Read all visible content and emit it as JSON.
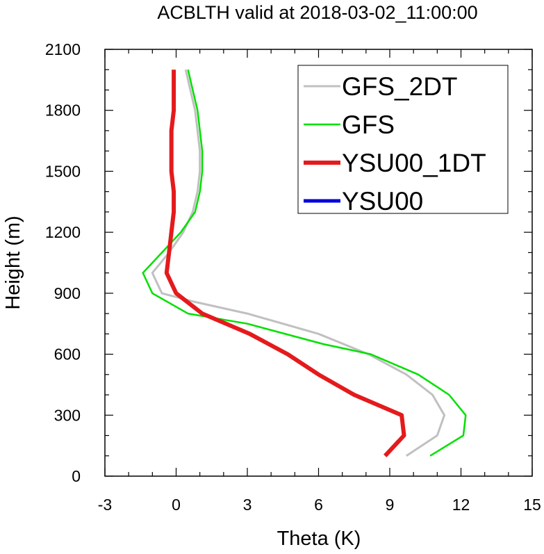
{
  "chart_data": {
    "type": "line",
    "title": "ACBLTH valid at 2018-03-02_11:00:00",
    "xlabel": "Theta (K)",
    "ylabel": "Height (m)",
    "xlim": [
      -3,
      15
    ],
    "ylim": [
      0,
      2100
    ],
    "xticks": [
      "-3",
      "0",
      "3",
      "6",
      "9",
      "12",
      "15"
    ],
    "yticks": [
      "0",
      "300",
      "600",
      "900",
      "1200",
      "1500",
      "1800",
      "2100"
    ],
    "legend_position": "top-right",
    "series": [
      {
        "name": "GFS_2DT",
        "color": "#c0c0c0",
        "points": [
          [
            9.7,
            100
          ],
          [
            11.0,
            200
          ],
          [
            11.3,
            300
          ],
          [
            10.8,
            400
          ],
          [
            9.7,
            500
          ],
          [
            8.1,
            600
          ],
          [
            6.0,
            700
          ],
          [
            3.0,
            800
          ],
          [
            0.7,
            860
          ],
          [
            -0.6,
            900
          ],
          [
            -1.0,
            1000
          ],
          [
            -0.3,
            1100
          ],
          [
            0.3,
            1200
          ],
          [
            0.7,
            1300
          ],
          [
            0.9,
            1400
          ],
          [
            1.0,
            1500
          ],
          [
            1.0,
            1600
          ],
          [
            0.9,
            1700
          ],
          [
            0.8,
            1800
          ],
          [
            0.6,
            1900
          ],
          [
            0.4,
            2000
          ]
        ]
      },
      {
        "name": "GFS",
        "color": "#00e000",
        "points": [
          [
            10.7,
            100
          ],
          [
            12.1,
            200
          ],
          [
            12.2,
            300
          ],
          [
            11.5,
            400
          ],
          [
            10.2,
            500
          ],
          [
            8.2,
            600
          ],
          [
            6.2,
            650
          ],
          [
            3.0,
            750
          ],
          [
            0.5,
            800
          ],
          [
            -1.0,
            900
          ],
          [
            -1.4,
            1000
          ],
          [
            -0.6,
            1100
          ],
          [
            0.2,
            1200
          ],
          [
            0.8,
            1300
          ],
          [
            1.0,
            1400
          ],
          [
            1.1,
            1500
          ],
          [
            1.1,
            1600
          ],
          [
            1.0,
            1700
          ],
          [
            0.9,
            1800
          ],
          [
            0.7,
            1900
          ],
          [
            0.5,
            2000
          ]
        ]
      },
      {
        "name": "YSU00_1DT",
        "color": "#e41a1c",
        "points": [
          [
            8.8,
            100
          ],
          [
            9.6,
            200
          ],
          [
            9.5,
            300
          ],
          [
            7.5,
            400
          ],
          [
            6.0,
            500
          ],
          [
            4.7,
            600
          ],
          [
            3.1,
            700
          ],
          [
            1.1,
            800
          ],
          [
            0.0,
            900
          ],
          [
            -0.4,
            1000
          ],
          [
            -0.3,
            1100
          ],
          [
            -0.2,
            1200
          ],
          [
            -0.1,
            1300
          ],
          [
            -0.1,
            1400
          ],
          [
            -0.2,
            1500
          ],
          [
            -0.2,
            1600
          ],
          [
            -0.2,
            1700
          ],
          [
            -0.1,
            1800
          ],
          [
            -0.1,
            1900
          ],
          [
            -0.1,
            2000
          ]
        ]
      },
      {
        "name": "YSU00",
        "color": "#0000dd",
        "points": []
      }
    ]
  }
}
